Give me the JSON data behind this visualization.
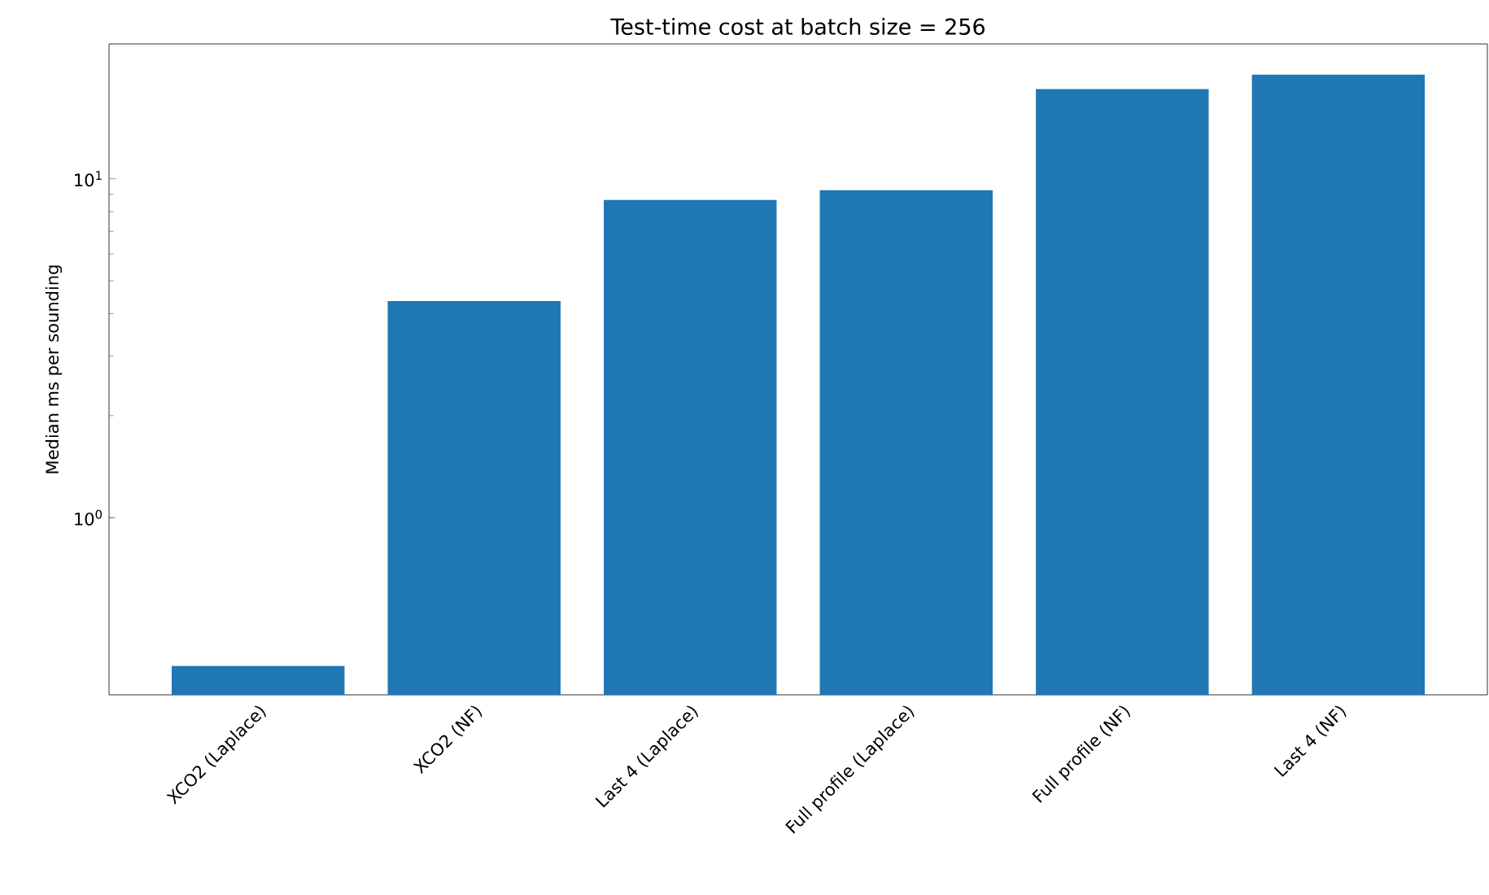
{
  "chart_data": {
    "type": "bar",
    "title": "Test-time cost at batch size = 256",
    "ylabel": "Median ms per sounding",
    "categories": [
      "XCO2 (Laplace)",
      "XCO2 (NF)",
      "Last 4 (Laplace)",
      "Full profile (Laplace)",
      "Full profile (NF)",
      "Last 4 (NF)"
    ],
    "values": [
      0.365,
      4.36,
      8.66,
      9.26,
      18.4,
      20.3
    ],
    "color": "#1f77b4",
    "log": "y",
    "ylim": [
      0.3,
      25
    ],
    "yticks": [
      {
        "value": 1,
        "label": "10$^{0}$"
      },
      {
        "value": 10,
        "label": "10$^{1}$"
      }
    ]
  }
}
